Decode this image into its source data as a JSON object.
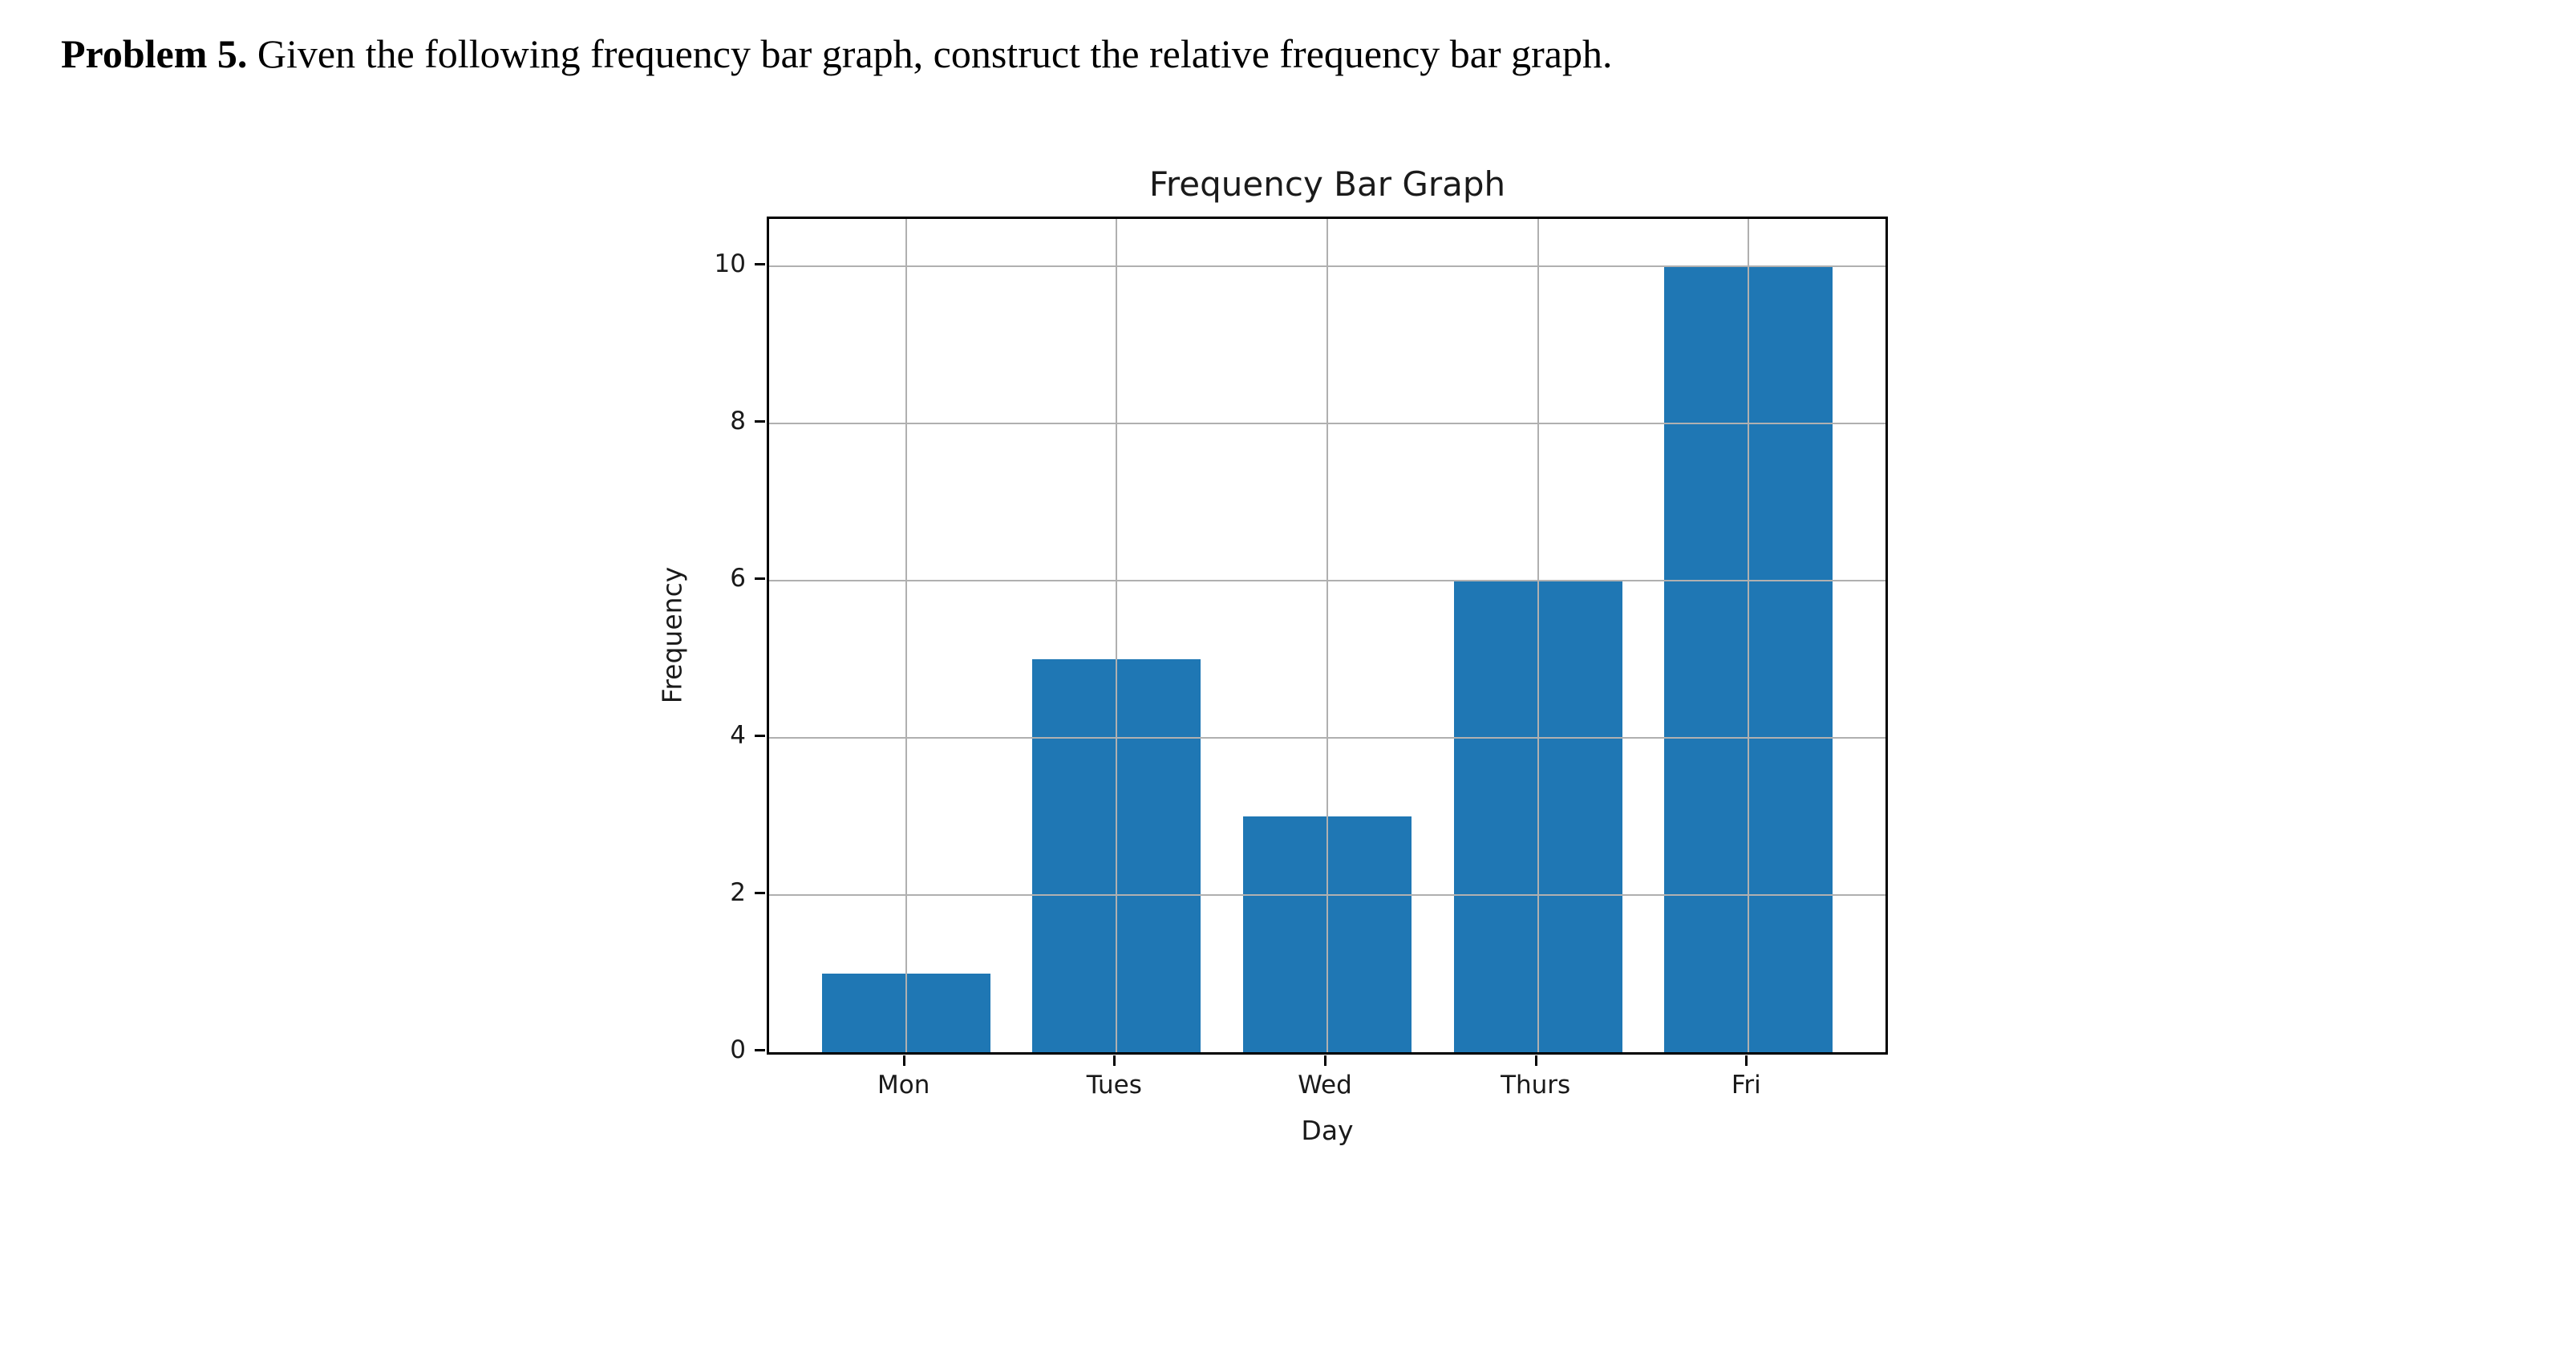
{
  "problem": {
    "label": "Problem 5.",
    "text": " Given the following frequency bar graph, construct the relative frequency bar graph."
  },
  "chart_data": {
    "type": "bar",
    "title": "Frequency Bar Graph",
    "xlabel": "Day",
    "ylabel": "Frequency",
    "categories": [
      "Mon",
      "Tues",
      "Wed",
      "Thurs",
      "Fri"
    ],
    "values": [
      1,
      5,
      3,
      6,
      10
    ],
    "yticks": [
      0,
      2,
      4,
      6,
      8,
      10
    ],
    "ylim": [
      0,
      10.6
    ],
    "xlim": [
      -0.65,
      4.65
    ],
    "bar_relative_width": 0.8,
    "grid": true,
    "grid_on_top_of_bars": true,
    "legend": "none",
    "bar_color": "#1f77b4",
    "grid_color": "#b0b0b0",
    "spine_color": "#000000"
  }
}
